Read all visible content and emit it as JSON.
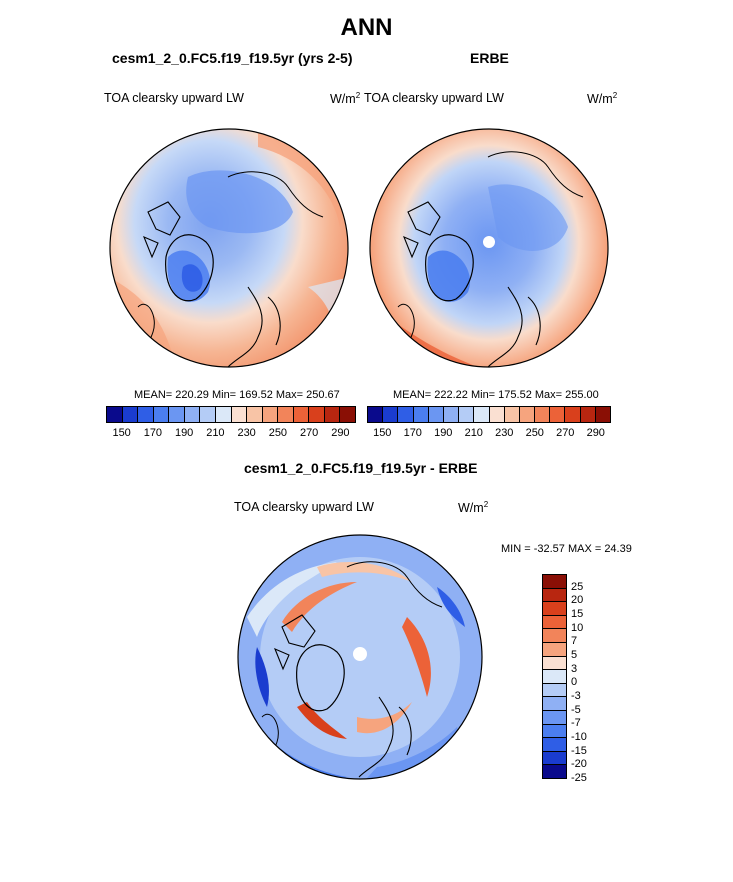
{
  "title": "ANN",
  "panels": {
    "model": {
      "title": "cesm1_2_0.FC5.f19_f19.5yr (yrs 2-5)",
      "variable": "TOA clearsky upward LW",
      "units": "W/m",
      "units_sup": "2",
      "stats": "MEAN= 220.29  Min= 169.52  Max= 250.67"
    },
    "obs": {
      "title": "ERBE",
      "variable": "TOA clearsky upward LW",
      "units": "W/m",
      "units_sup": "2",
      "stats": "MEAN= 222.22  Min= 175.52  Max= 255.00"
    },
    "diff": {
      "title": "cesm1_2_0.FC5.f19_f19.5yr - ERBE",
      "variable": "TOA clearsky upward LW",
      "units": "W/m",
      "units_sup": "2",
      "stats": "MIN = -32.57 MAX =  24.39"
    }
  },
  "colorbar_abs": {
    "colors": [
      "#0a0a8c",
      "#1a3ccf",
      "#2f5ee6",
      "#4b7ef0",
      "#6b96f2",
      "#8fb0f4",
      "#b4ccf6",
      "#dbe8f8",
      "#fae0d2",
      "#f8c4a6",
      "#f6a47e",
      "#f2845a",
      "#ec6238",
      "#d9401c",
      "#b82610",
      "#8a0f05"
    ],
    "tick_labels": [
      "150",
      "170",
      "190",
      "210",
      "230",
      "250",
      "270",
      "290"
    ]
  },
  "colorbar_diff": {
    "colors": [
      "#8a0f05",
      "#b82610",
      "#d9401c",
      "#ec6238",
      "#f2845a",
      "#f6a47e",
      "#fae0d2",
      "#dbe8f8",
      "#b4ccf6",
      "#8fb0f4",
      "#6b96f2",
      "#4b7ef0",
      "#2f5ee6",
      "#1a3ccf",
      "#0a0a8c"
    ],
    "tick_labels": [
      "25",
      "20",
      "15",
      "10",
      "7",
      "5",
      "3",
      "0",
      "-3",
      "-5",
      "-7",
      "-10",
      "-15",
      "-20",
      "-25"
    ]
  },
  "chart_data": [
    {
      "type": "heatmap",
      "title": "cesm1_2_0.FC5.f19_f19.5yr (yrs 2-5)",
      "variable": "TOA clearsky upward LW",
      "units": "W/m2",
      "projection": "north polar stereographic",
      "mean": 220.29,
      "min": 169.52,
      "max": 250.67,
      "levels": [
        150,
        160,
        170,
        180,
        190,
        200,
        210,
        220,
        230,
        240,
        250,
        260,
        270,
        280,
        290
      ]
    },
    {
      "type": "heatmap",
      "title": "ERBE",
      "variable": "TOA clearsky upward LW",
      "units": "W/m2",
      "projection": "north polar stereographic",
      "mean": 222.22,
      "min": 175.52,
      "max": 255.0,
      "levels": [
        150,
        160,
        170,
        180,
        190,
        200,
        210,
        220,
        230,
        240,
        250,
        260,
        270,
        280,
        290
      ]
    },
    {
      "type": "heatmap",
      "title": "cesm1_2_0.FC5.f19_f19.5yr - ERBE",
      "variable": "TOA clearsky upward LW",
      "units": "W/m2",
      "projection": "north polar stereographic",
      "min": -32.57,
      "max": 24.39,
      "levels": [
        -25,
        -20,
        -15,
        -10,
        -7,
        -5,
        -3,
        0,
        3,
        5,
        7,
        10,
        15,
        20,
        25
      ]
    }
  ]
}
